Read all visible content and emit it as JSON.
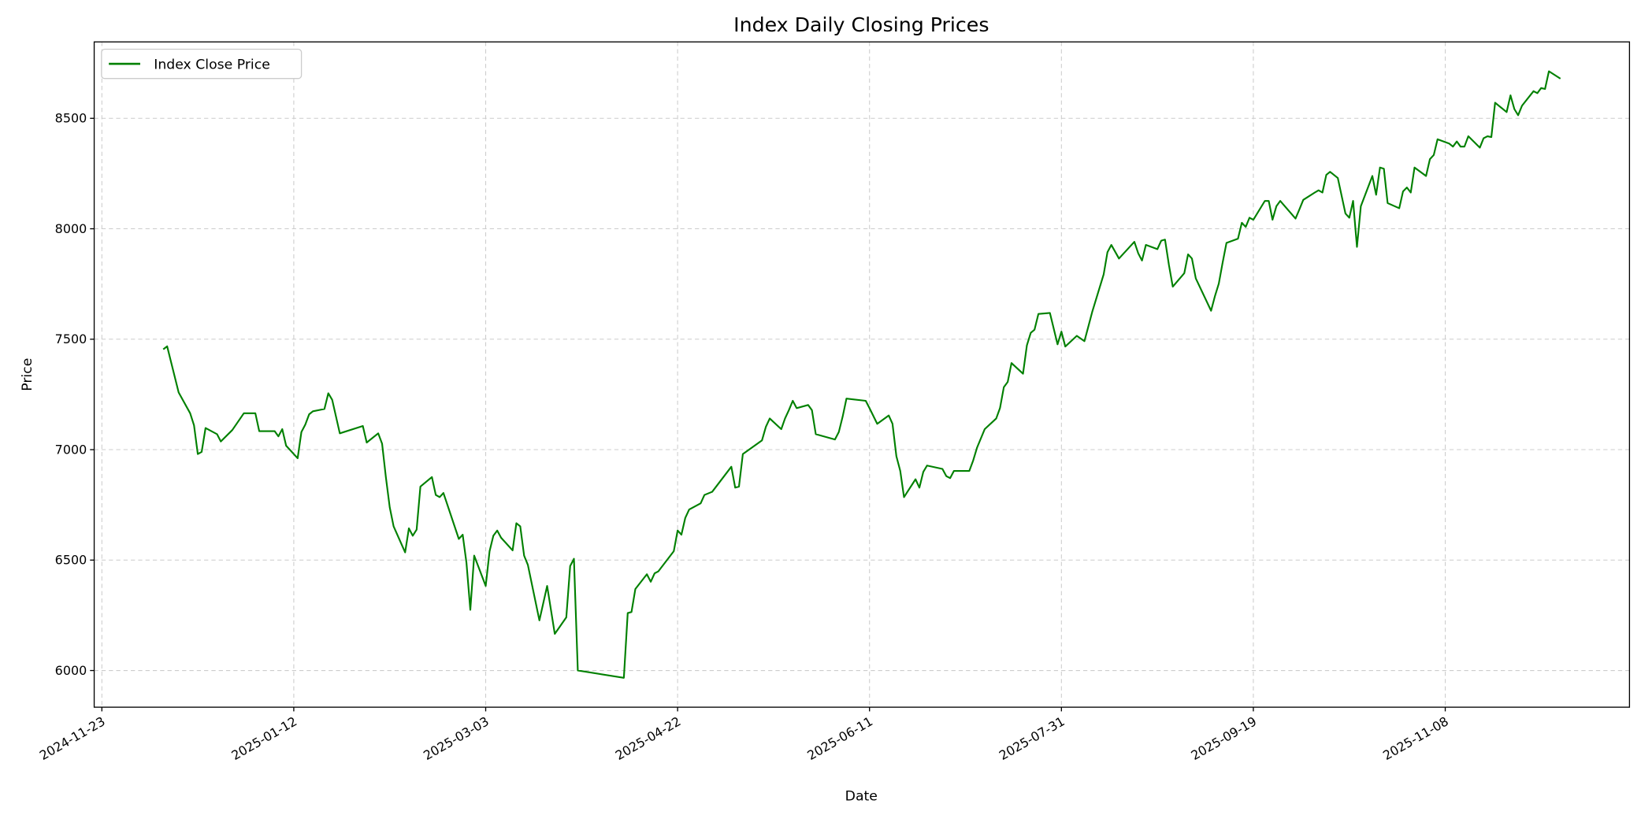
{
  "chart_data": {
    "type": "line",
    "title": "Index Daily Closing Prices",
    "xlabel": "Date",
    "ylabel": "Price",
    "xlim": [
      "2024-11-21",
      "2025-12-26"
    ],
    "ylim": [
      5834,
      8846
    ],
    "grid": true,
    "legend": {
      "placement": "top-left"
    },
    "x_ticks": [
      "2024-11-23",
      "2025-01-12",
      "2025-03-03",
      "2025-04-22",
      "2025-06-11",
      "2025-07-31",
      "2025-09-19",
      "2025-11-08"
    ],
    "y_ticks": [
      6000,
      6500,
      7000,
      7500,
      8000,
      8500
    ],
    "series": [
      {
        "name": "Index Close Price",
        "color": "#008000",
        "points": [
          [
            "2024-12-09",
            7454
          ],
          [
            "2024-12-10",
            7468
          ],
          [
            "2024-12-13",
            7259
          ],
          [
            "2024-12-16",
            7165
          ],
          [
            "2024-12-17",
            7110
          ],
          [
            "2024-12-18",
            6980
          ],
          [
            "2024-12-19",
            6990
          ],
          [
            "2024-12-20",
            7098
          ],
          [
            "2024-12-23",
            7070
          ],
          [
            "2024-12-24",
            7037
          ],
          [
            "2024-12-27",
            7089
          ],
          [
            "2024-12-30",
            7165
          ],
          [
            "2025-01-02",
            7165
          ],
          [
            "2025-01-03",
            7084
          ],
          [
            "2025-01-07",
            7084
          ],
          [
            "2025-01-08",
            7060
          ],
          [
            "2025-01-09",
            7093
          ],
          [
            "2025-01-10",
            7018
          ],
          [
            "2025-01-13",
            6961
          ],
          [
            "2025-01-14",
            7080
          ],
          [
            "2025-01-15",
            7113
          ],
          [
            "2025-01-16",
            7160
          ],
          [
            "2025-01-17",
            7174
          ],
          [
            "2025-01-20",
            7184
          ],
          [
            "2025-01-21",
            7255
          ],
          [
            "2025-01-22",
            7226
          ],
          [
            "2025-01-24",
            7074
          ],
          [
            "2025-01-30",
            7107
          ],
          [
            "2025-01-31",
            7032
          ],
          [
            "2025-02-03",
            7074
          ],
          [
            "2025-02-04",
            7027
          ],
          [
            "2025-02-05",
            6876
          ],
          [
            "2025-02-06",
            6739
          ],
          [
            "2025-02-07",
            6653
          ],
          [
            "2025-02-10",
            6535
          ],
          [
            "2025-02-11",
            6644
          ],
          [
            "2025-02-12",
            6610
          ],
          [
            "2025-02-13",
            6638
          ],
          [
            "2025-02-14",
            6833
          ],
          [
            "2025-02-17",
            6876
          ],
          [
            "2025-02-18",
            6795
          ],
          [
            "2025-02-19",
            6785
          ],
          [
            "2025-02-20",
            6804
          ],
          [
            "2025-02-24",
            6596
          ],
          [
            "2025-02-25",
            6615
          ],
          [
            "2025-02-26",
            6488
          ],
          [
            "2025-02-27",
            6275
          ],
          [
            "2025-02-28",
            6520
          ],
          [
            "2025-03-03",
            6383
          ],
          [
            "2025-03-04",
            6540
          ],
          [
            "2025-03-05",
            6610
          ],
          [
            "2025-03-06",
            6634
          ],
          [
            "2025-03-07",
            6601
          ],
          [
            "2025-03-10",
            6544
          ],
          [
            "2025-03-11",
            6667
          ],
          [
            "2025-03-12",
            6653
          ],
          [
            "2025-03-13",
            6520
          ],
          [
            "2025-03-14",
            6478
          ],
          [
            "2025-03-17",
            6227
          ],
          [
            "2025-03-19",
            6383
          ],
          [
            "2025-03-21",
            6166
          ],
          [
            "2025-03-24",
            6241
          ],
          [
            "2025-03-25",
            6473
          ],
          [
            "2025-03-26",
            6506
          ],
          [
            "2025-03-27",
            6000
          ],
          [
            "2025-04-08",
            5967
          ],
          [
            "2025-04-09",
            6260
          ],
          [
            "2025-04-10",
            6265
          ],
          [
            "2025-04-11",
            6369
          ],
          [
            "2025-04-14",
            6436
          ],
          [
            "2025-04-15",
            6402
          ],
          [
            "2025-04-16",
            6440
          ],
          [
            "2025-04-17",
            6449
          ],
          [
            "2025-04-21",
            6540
          ],
          [
            "2025-04-22",
            6634
          ],
          [
            "2025-04-23",
            6615
          ],
          [
            "2025-04-24",
            6691
          ],
          [
            "2025-04-25",
            6729
          ],
          [
            "2025-04-28",
            6757
          ],
          [
            "2025-04-29",
            6795
          ],
          [
            "2025-05-01",
            6809
          ],
          [
            "2025-05-06",
            6923
          ],
          [
            "2025-05-07",
            6828
          ],
          [
            "2025-05-08",
            6833
          ],
          [
            "2025-05-09",
            6980
          ],
          [
            "2025-05-14",
            7042
          ],
          [
            "2025-05-15",
            7103
          ],
          [
            "2025-05-16",
            7141
          ],
          [
            "2025-05-19",
            7093
          ],
          [
            "2025-05-20",
            7141
          ],
          [
            "2025-05-21",
            7179
          ],
          [
            "2025-05-22",
            7221
          ],
          [
            "2025-05-23",
            7188
          ],
          [
            "2025-05-26",
            7202
          ],
          [
            "2025-05-27",
            7179
          ],
          [
            "2025-05-28",
            7070
          ],
          [
            "2025-06-02",
            7046
          ],
          [
            "2025-06-03",
            7080
          ],
          [
            "2025-06-04",
            7150
          ],
          [
            "2025-06-05",
            7231
          ],
          [
            "2025-06-10",
            7221
          ],
          [
            "2025-06-11",
            7188
          ],
          [
            "2025-06-13",
            7117
          ],
          [
            "2025-06-16",
            7155
          ],
          [
            "2025-06-17",
            7117
          ],
          [
            "2025-06-18",
            6970
          ],
          [
            "2025-06-19",
            6904
          ],
          [
            "2025-06-20",
            6785
          ],
          [
            "2025-06-23",
            6866
          ],
          [
            "2025-06-24",
            6828
          ],
          [
            "2025-06-25",
            6899
          ],
          [
            "2025-06-26",
            6928
          ],
          [
            "2025-06-30",
            6913
          ],
          [
            "2025-07-01",
            6880
          ],
          [
            "2025-07-02",
            6871
          ],
          [
            "2025-07-03",
            6904
          ],
          [
            "2025-07-07",
            6904
          ],
          [
            "2025-07-08",
            6951
          ],
          [
            "2025-07-09",
            7008
          ],
          [
            "2025-07-11",
            7093
          ],
          [
            "2025-07-14",
            7141
          ],
          [
            "2025-07-15",
            7188
          ],
          [
            "2025-07-16",
            7283
          ],
          [
            "2025-07-17",
            7307
          ],
          [
            "2025-07-18",
            7392
          ],
          [
            "2025-07-21",
            7344
          ],
          [
            "2025-07-22",
            7472
          ],
          [
            "2025-07-23",
            7529
          ],
          [
            "2025-07-24",
            7543
          ],
          [
            "2025-07-25",
            7614
          ],
          [
            "2025-07-28",
            7619
          ],
          [
            "2025-07-30",
            7477
          ],
          [
            "2025-07-31",
            7534
          ],
          [
            "2025-08-01",
            7467
          ],
          [
            "2025-08-04",
            7515
          ],
          [
            "2025-08-06",
            7491
          ],
          [
            "2025-08-07",
            7557
          ],
          [
            "2025-08-08",
            7623
          ],
          [
            "2025-08-11",
            7794
          ],
          [
            "2025-08-12",
            7894
          ],
          [
            "2025-08-13",
            7927
          ],
          [
            "2025-08-15",
            7865
          ],
          [
            "2025-08-19",
            7941
          ],
          [
            "2025-08-20",
            7889
          ],
          [
            "2025-08-21",
            7856
          ],
          [
            "2025-08-22",
            7927
          ],
          [
            "2025-08-25",
            7908
          ],
          [
            "2025-08-26",
            7946
          ],
          [
            "2025-08-27",
            7951
          ],
          [
            "2025-08-28",
            7837
          ],
          [
            "2025-08-29",
            7738
          ],
          [
            "2025-09-01",
            7799
          ],
          [
            "2025-09-02",
            7884
          ],
          [
            "2025-09-03",
            7865
          ],
          [
            "2025-09-04",
            7775
          ],
          [
            "2025-09-08",
            7629
          ],
          [
            "2025-09-09",
            7695
          ],
          [
            "2025-09-10",
            7752
          ],
          [
            "2025-09-11",
            7846
          ],
          [
            "2025-09-12",
            7936
          ],
          [
            "2025-09-15",
            7955
          ],
          [
            "2025-09-16",
            8027
          ],
          [
            "2025-09-17",
            8008
          ],
          [
            "2025-09-18",
            8050
          ],
          [
            "2025-09-19",
            8041
          ],
          [
            "2025-09-22",
            8126
          ],
          [
            "2025-09-23",
            8126
          ],
          [
            "2025-09-24",
            8041
          ],
          [
            "2025-09-25",
            8102
          ],
          [
            "2025-09-26",
            8126
          ],
          [
            "2025-09-30",
            8046
          ],
          [
            "2025-10-01",
            8088
          ],
          [
            "2025-10-02",
            8131
          ],
          [
            "2025-10-05",
            8164
          ],
          [
            "2025-10-06",
            8174
          ],
          [
            "2025-10-07",
            8164
          ],
          [
            "2025-10-08",
            8244
          ],
          [
            "2025-10-09",
            8258
          ],
          [
            "2025-10-11",
            8230
          ],
          [
            "2025-10-13",
            8069
          ],
          [
            "2025-10-14",
            8050
          ],
          [
            "2025-10-15",
            8126
          ],
          [
            "2025-10-16",
            7918
          ],
          [
            "2025-10-17",
            8102
          ],
          [
            "2025-10-20",
            8239
          ],
          [
            "2025-10-21",
            8154
          ],
          [
            "2025-10-22",
            8277
          ],
          [
            "2025-10-23",
            8272
          ],
          [
            "2025-10-24",
            8116
          ],
          [
            "2025-10-27",
            8093
          ],
          [
            "2025-10-28",
            8169
          ],
          [
            "2025-10-29",
            8187
          ],
          [
            "2025-10-30",
            8164
          ],
          [
            "2025-10-31",
            8277
          ],
          [
            "2025-11-03",
            8239
          ],
          [
            "2025-11-04",
            8315
          ],
          [
            "2025-11-05",
            8334
          ],
          [
            "2025-11-06",
            8405
          ],
          [
            "2025-11-09",
            8386
          ],
          [
            "2025-11-10",
            8372
          ],
          [
            "2025-11-11",
            8395
          ],
          [
            "2025-11-12",
            8372
          ],
          [
            "2025-11-13",
            8372
          ],
          [
            "2025-11-14",
            8419
          ],
          [
            "2025-11-17",
            8367
          ],
          [
            "2025-11-18",
            8410
          ],
          [
            "2025-11-19",
            8419
          ],
          [
            "2025-11-20",
            8415
          ],
          [
            "2025-11-21",
            8571
          ],
          [
            "2025-11-24",
            8528
          ],
          [
            "2025-11-25",
            8604
          ],
          [
            "2025-11-26",
            8542
          ],
          [
            "2025-11-27",
            8514
          ],
          [
            "2025-11-28",
            8557
          ],
          [
            "2025-12-01",
            8623
          ],
          [
            "2025-12-02",
            8614
          ],
          [
            "2025-12-03",
            8637
          ],
          [
            "2025-12-04",
            8633
          ],
          [
            "2025-12-05",
            8713
          ],
          [
            "2025-12-08",
            8680
          ]
        ]
      }
    ]
  }
}
